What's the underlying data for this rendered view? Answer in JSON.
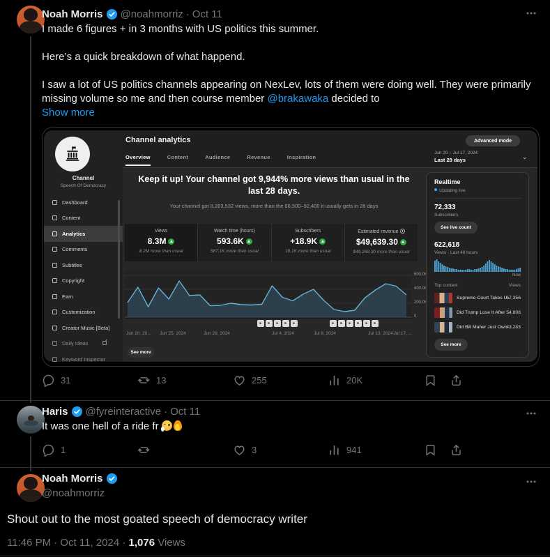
{
  "tweets": {
    "t1": {
      "name": "Noah Morris",
      "handle": "@noahmorriz",
      "sep": "·",
      "date": "Oct 11",
      "p1": "I made 6 figures + in 3 months with US politics this summer.",
      "p2": "Here’s a quick breakdown of what happend.",
      "p3_pre": "I saw a lot of US politics channels appearing on NexLev, lots of them were doing well. They were primarily missing volume so me and then course member ",
      "mention": "@brakawaka",
      "p3_post": " decided to",
      "show_more": "Show more",
      "replies": "31",
      "reposts": "13",
      "likes": "255",
      "views": "20K"
    },
    "t2": {
      "name": "Haris",
      "handle": "@fyreinteractive",
      "sep": "·",
      "date": "Oct 11",
      "body": "It was one hell of a ride fr ",
      "replies": "1",
      "reposts": "",
      "likes": "3",
      "views": "941"
    },
    "t3": {
      "name": "Noah Morris",
      "handle": "@noahmorriz",
      "body": "Shout out to the most goated speech of democracy writer",
      "time_prefix": "11:46 PM · Oct 11, 2024 · ",
      "views_count": "1,076",
      "views_label": " Views"
    }
  },
  "studio": {
    "channel_label": "Channel",
    "channel_name": "Speech Of Democracy",
    "sidebar": [
      "Dashboard",
      "Content",
      "Analytics",
      "Comments",
      "Subtitles",
      "Copyright",
      "Earn",
      "Customization",
      "Creator Music [Beta]",
      "Daily Ideas",
      "Keyword Inspector"
    ],
    "active_item": "Analytics",
    "title": "Channel analytics",
    "tabs": [
      "Overview",
      "Content",
      "Audience",
      "Revenue",
      "Inspiration"
    ],
    "advanced_mode": "Advanced mode",
    "date_range": "Jun 20 – Jul 17, 2024",
    "date_preset": "Last 28 days",
    "headline": "Keep it up! Your channel got 9,944% more views than usual in the last 28 days.",
    "subline": "Your channel got 8,283,532 views, more than the 66,500–92,400 it usually gets in 28 days",
    "stat_cards": [
      {
        "label": "Views",
        "value": "8.3M",
        "sub": "8.2M more than usual",
        "info": false
      },
      {
        "label": "Watch time (hours)",
        "value": "593.6K",
        "sub": "587.1K more than usual",
        "info": false
      },
      {
        "label": "Subscribers",
        "value": "+18.9K",
        "sub": "18.1K more than usual",
        "info": false
      },
      {
        "label": "Estimated revenue",
        "value": "$49,639.30",
        "sub": "$49,269.30 more than usual",
        "info": true
      }
    ],
    "see_more": "See more",
    "realtime": {
      "title": "Realtime",
      "updating": "Updating live",
      "subs_value": "72,333",
      "subs_label": "Subscribers",
      "live_count_btn": "See live count",
      "views_value": "622,618",
      "views_label": "Views · Last 48 hours",
      "now_label": "Now",
      "top_content_label": "Top content",
      "views_col_label": "Views",
      "rows": [
        {
          "title": "Supreme Court Takes U...",
          "views": "67,356"
        },
        {
          "title": "Did Trump Lose It After ...",
          "views": "54,808"
        },
        {
          "title": "Did Bill Maher Just Own...",
          "views": "43,283"
        }
      ],
      "see_more": "See more"
    }
  },
  "chart_data": [
    {
      "type": "area",
      "title": "Channel views per day, last 28 days",
      "x_labels": [
        "Jun 20, 20...",
        "Jun 25, 2024",
        "Jun 29, 2024",
        "Jul 4, 2024",
        "Jul 8, 2024",
        "Jul 13, 2024",
        "Jul 17, ..."
      ],
      "y_ticks": [
        "600.0K",
        "400.0K",
        "200.0K",
        "0"
      ],
      "ylim": [
        0,
        600000
      ],
      "x_range": [
        "Jun 20, 2024",
        "Jul 17, 2024"
      ],
      "values_k": [
        210,
        430,
        150,
        420,
        260,
        520,
        310,
        320,
        165,
        170,
        200,
        180,
        175,
        185,
        450,
        285,
        235,
        330,
        400,
        240,
        110,
        80,
        100,
        280,
        390,
        480,
        445,
        320
      ],
      "legend": "off",
      "grid": "horizontal"
    },
    {
      "type": "bar",
      "title": "Realtime views, last 48 hours",
      "values_rel": [
        16,
        18,
        15,
        13,
        11,
        9,
        8,
        7,
        6,
        5,
        5,
        4,
        4,
        3,
        3,
        3,
        3,
        3,
        4,
        4,
        3,
        3,
        4,
        4,
        5,
        6,
        7,
        9,
        12,
        15,
        17,
        15,
        13,
        11,
        9,
        8,
        7,
        6,
        5,
        4,
        4,
        3,
        3,
        3,
        3,
        4,
        5,
        6
      ],
      "x_end_label": "Now",
      "legend": "off",
      "grid": "off"
    }
  ]
}
